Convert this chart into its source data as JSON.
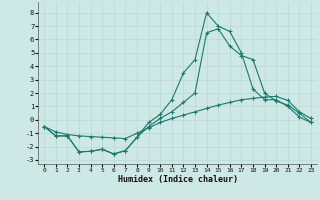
{
  "xlabel": "Humidex (Indice chaleur)",
  "xlim": [
    -0.5,
    23.5
  ],
  "ylim": [
    -3.3,
    8.8
  ],
  "yticks": [
    -3,
    -2,
    -1,
    0,
    1,
    2,
    3,
    4,
    5,
    6,
    7,
    8
  ],
  "xticks": [
    0,
    1,
    2,
    3,
    4,
    5,
    6,
    7,
    8,
    9,
    10,
    11,
    12,
    13,
    14,
    15,
    16,
    17,
    18,
    19,
    20,
    21,
    22,
    23
  ],
  "background_color": "#cde8e5",
  "grid_color": "#b8d8d5",
  "line_color": "#1a7a6e",
  "line1_x": [
    0,
    1,
    2,
    3,
    4,
    5,
    6,
    7,
    8,
    9,
    10,
    11,
    12,
    13,
    14,
    15,
    16,
    17,
    18,
    19,
    20,
    21,
    22,
    23
  ],
  "line1_y": [
    -0.5,
    -1.2,
    -1.2,
    -2.4,
    -2.35,
    -2.2,
    -2.55,
    -2.3,
    -1.3,
    -0.5,
    0.1,
    0.6,
    1.3,
    2.0,
    6.5,
    6.8,
    5.5,
    4.8,
    4.5,
    2.0,
    1.4,
    1.1,
    0.5,
    -0.2
  ],
  "line2_x": [
    0,
    1,
    2,
    3,
    4,
    5,
    6,
    7,
    8,
    9,
    10,
    11,
    12,
    13,
    14,
    15,
    16,
    17,
    18,
    19,
    20,
    21,
    22,
    23
  ],
  "line2_y": [
    -0.5,
    -1.2,
    -1.2,
    -2.4,
    -2.35,
    -2.2,
    -2.55,
    -2.3,
    -1.3,
    -0.2,
    0.4,
    1.5,
    3.5,
    4.5,
    8.0,
    7.0,
    6.6,
    5.0,
    2.3,
    1.5,
    1.5,
    1.0,
    0.2,
    -0.2
  ],
  "line3_x": [
    0,
    1,
    2,
    3,
    4,
    5,
    6,
    7,
    8,
    9,
    10,
    11,
    12,
    13,
    14,
    15,
    16,
    17,
    18,
    19,
    20,
    21,
    22,
    23
  ],
  "line3_y": [
    -0.5,
    -0.9,
    -1.1,
    -1.2,
    -1.25,
    -1.3,
    -1.35,
    -1.4,
    -1.0,
    -0.6,
    -0.2,
    0.1,
    0.35,
    0.6,
    0.85,
    1.1,
    1.3,
    1.5,
    1.6,
    1.7,
    1.75,
    1.45,
    0.6,
    0.1
  ]
}
